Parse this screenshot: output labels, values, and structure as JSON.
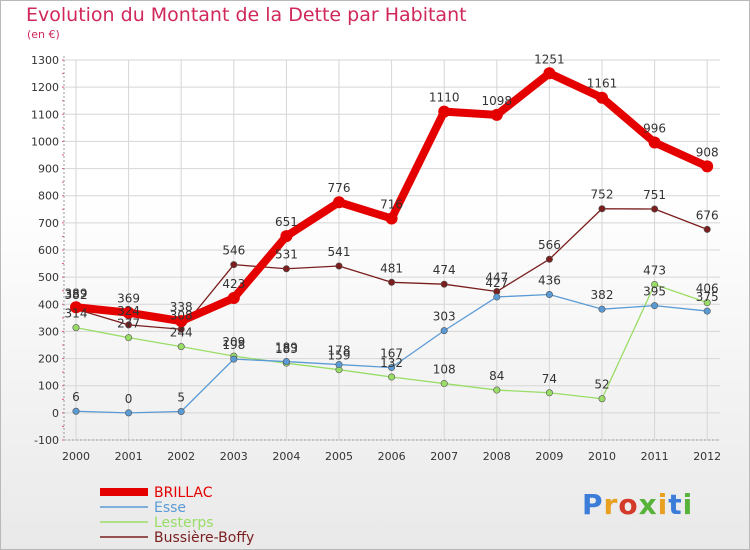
{
  "header": {
    "title": "Evolution du Montant de la Dette par Habitant",
    "subtitle": "(en €)"
  },
  "logo": {
    "text": "Proxiti"
  },
  "chart_data": {
    "type": "line",
    "title": "Evolution du Montant de la Dette par Habitant",
    "ylabel": "(en €)",
    "x": [
      "2000",
      "2001",
      "2002",
      "2003",
      "2004",
      "2005",
      "2006",
      "2007",
      "2008",
      "2009",
      "2010",
      "2011",
      "2012"
    ],
    "ylim": [
      -100,
      1300
    ],
    "yticks": [
      -100,
      0,
      100,
      200,
      300,
      400,
      500,
      600,
      700,
      800,
      900,
      1000,
      1100,
      1200,
      1300
    ],
    "grid": true,
    "legend": "bottom-left",
    "series": [
      {
        "name": "BRILLAC",
        "color": "#e50000",
        "values": [
          389,
          369,
          338,
          423,
          651,
          776,
          716,
          1110,
          1098,
          1251,
          1161,
          996,
          908
        ]
      },
      {
        "name": "Esse",
        "color": "#5b9bd5",
        "values": [
          6,
          0,
          5,
          198,
          189,
          178,
          167,
          303,
          427,
          436,
          382,
          395,
          375
        ]
      },
      {
        "name": "Lesterps",
        "color": "#99dd66",
        "values": [
          314,
          277,
          244,
          209,
          183,
          159,
          132,
          108,
          84,
          74,
          52,
          473,
          406
        ]
      },
      {
        "name": "Bussière-Boffy",
        "color": "#7a1e1e",
        "values": [
          382,
          324,
          308,
          546,
          531,
          541,
          481,
          474,
          447,
          566,
          752,
          751,
          676
        ]
      }
    ]
  }
}
